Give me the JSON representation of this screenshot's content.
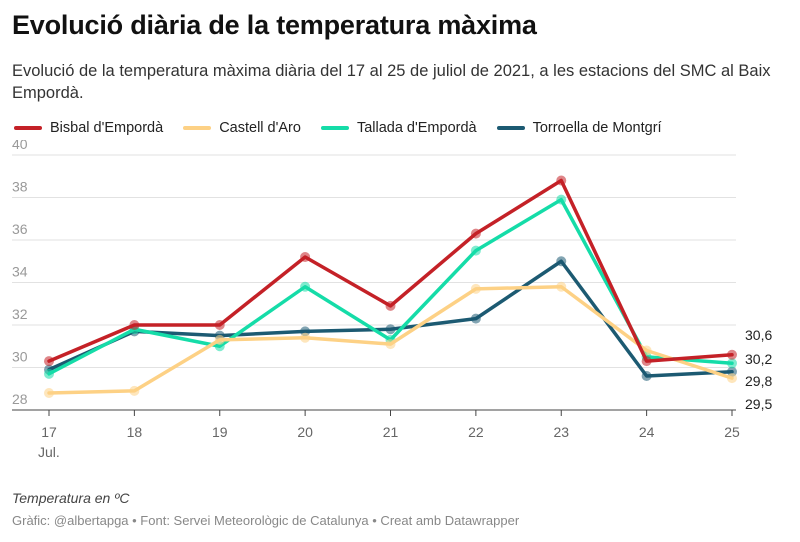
{
  "title": "Evolució diària de la temperatura màxima",
  "subtitle": "Evolució de la temperatura màxima diària del 17 al 25 de juliol de 2021, a les estacions del SMC al Baix Empordà.",
  "note": "Temperatura en ºC",
  "footer": "Gràfic: @albertapga • Font: Servei Meteorològic de Catalunya • Creat amb Datawrapper",
  "chart_data": {
    "type": "line",
    "x": [
      17,
      18,
      19,
      20,
      21,
      22,
      23,
      24,
      25
    ],
    "x_tick_labels": [
      "17",
      "18",
      "19",
      "20",
      "21",
      "22",
      "23",
      "24",
      "25"
    ],
    "x_sublabel": "Jul.",
    "ylim": [
      28,
      40
    ],
    "y_ticks": [
      28,
      30,
      32,
      34,
      36,
      38,
      40
    ],
    "grid": true,
    "legend_position": "top-left",
    "series": [
      {
        "name": "Bisbal d'Empordà",
        "color": "#c42127",
        "values": [
          30.3,
          32.0,
          32.0,
          35.2,
          32.9,
          36.3,
          38.8,
          30.3,
          30.6
        ]
      },
      {
        "name": "Castell d'Aro",
        "color": "#fdd185",
        "values": [
          28.8,
          28.9,
          31.3,
          31.4,
          31.1,
          33.7,
          33.8,
          30.8,
          29.5
        ]
      },
      {
        "name": "Tallada d'Empordà",
        "color": "#15dca8",
        "values": [
          29.7,
          31.8,
          31.0,
          33.8,
          31.3,
          35.5,
          37.9,
          30.5,
          30.2
        ]
      },
      {
        "name": "Torroella de Montgrí",
        "color": "#1c5a72",
        "values": [
          29.9,
          31.7,
          31.5,
          31.7,
          31.8,
          32.3,
          35.0,
          29.6,
          29.8
        ]
      }
    ],
    "end_labels": [
      "30,6",
      "30,2",
      "29,8",
      "29,5"
    ]
  }
}
